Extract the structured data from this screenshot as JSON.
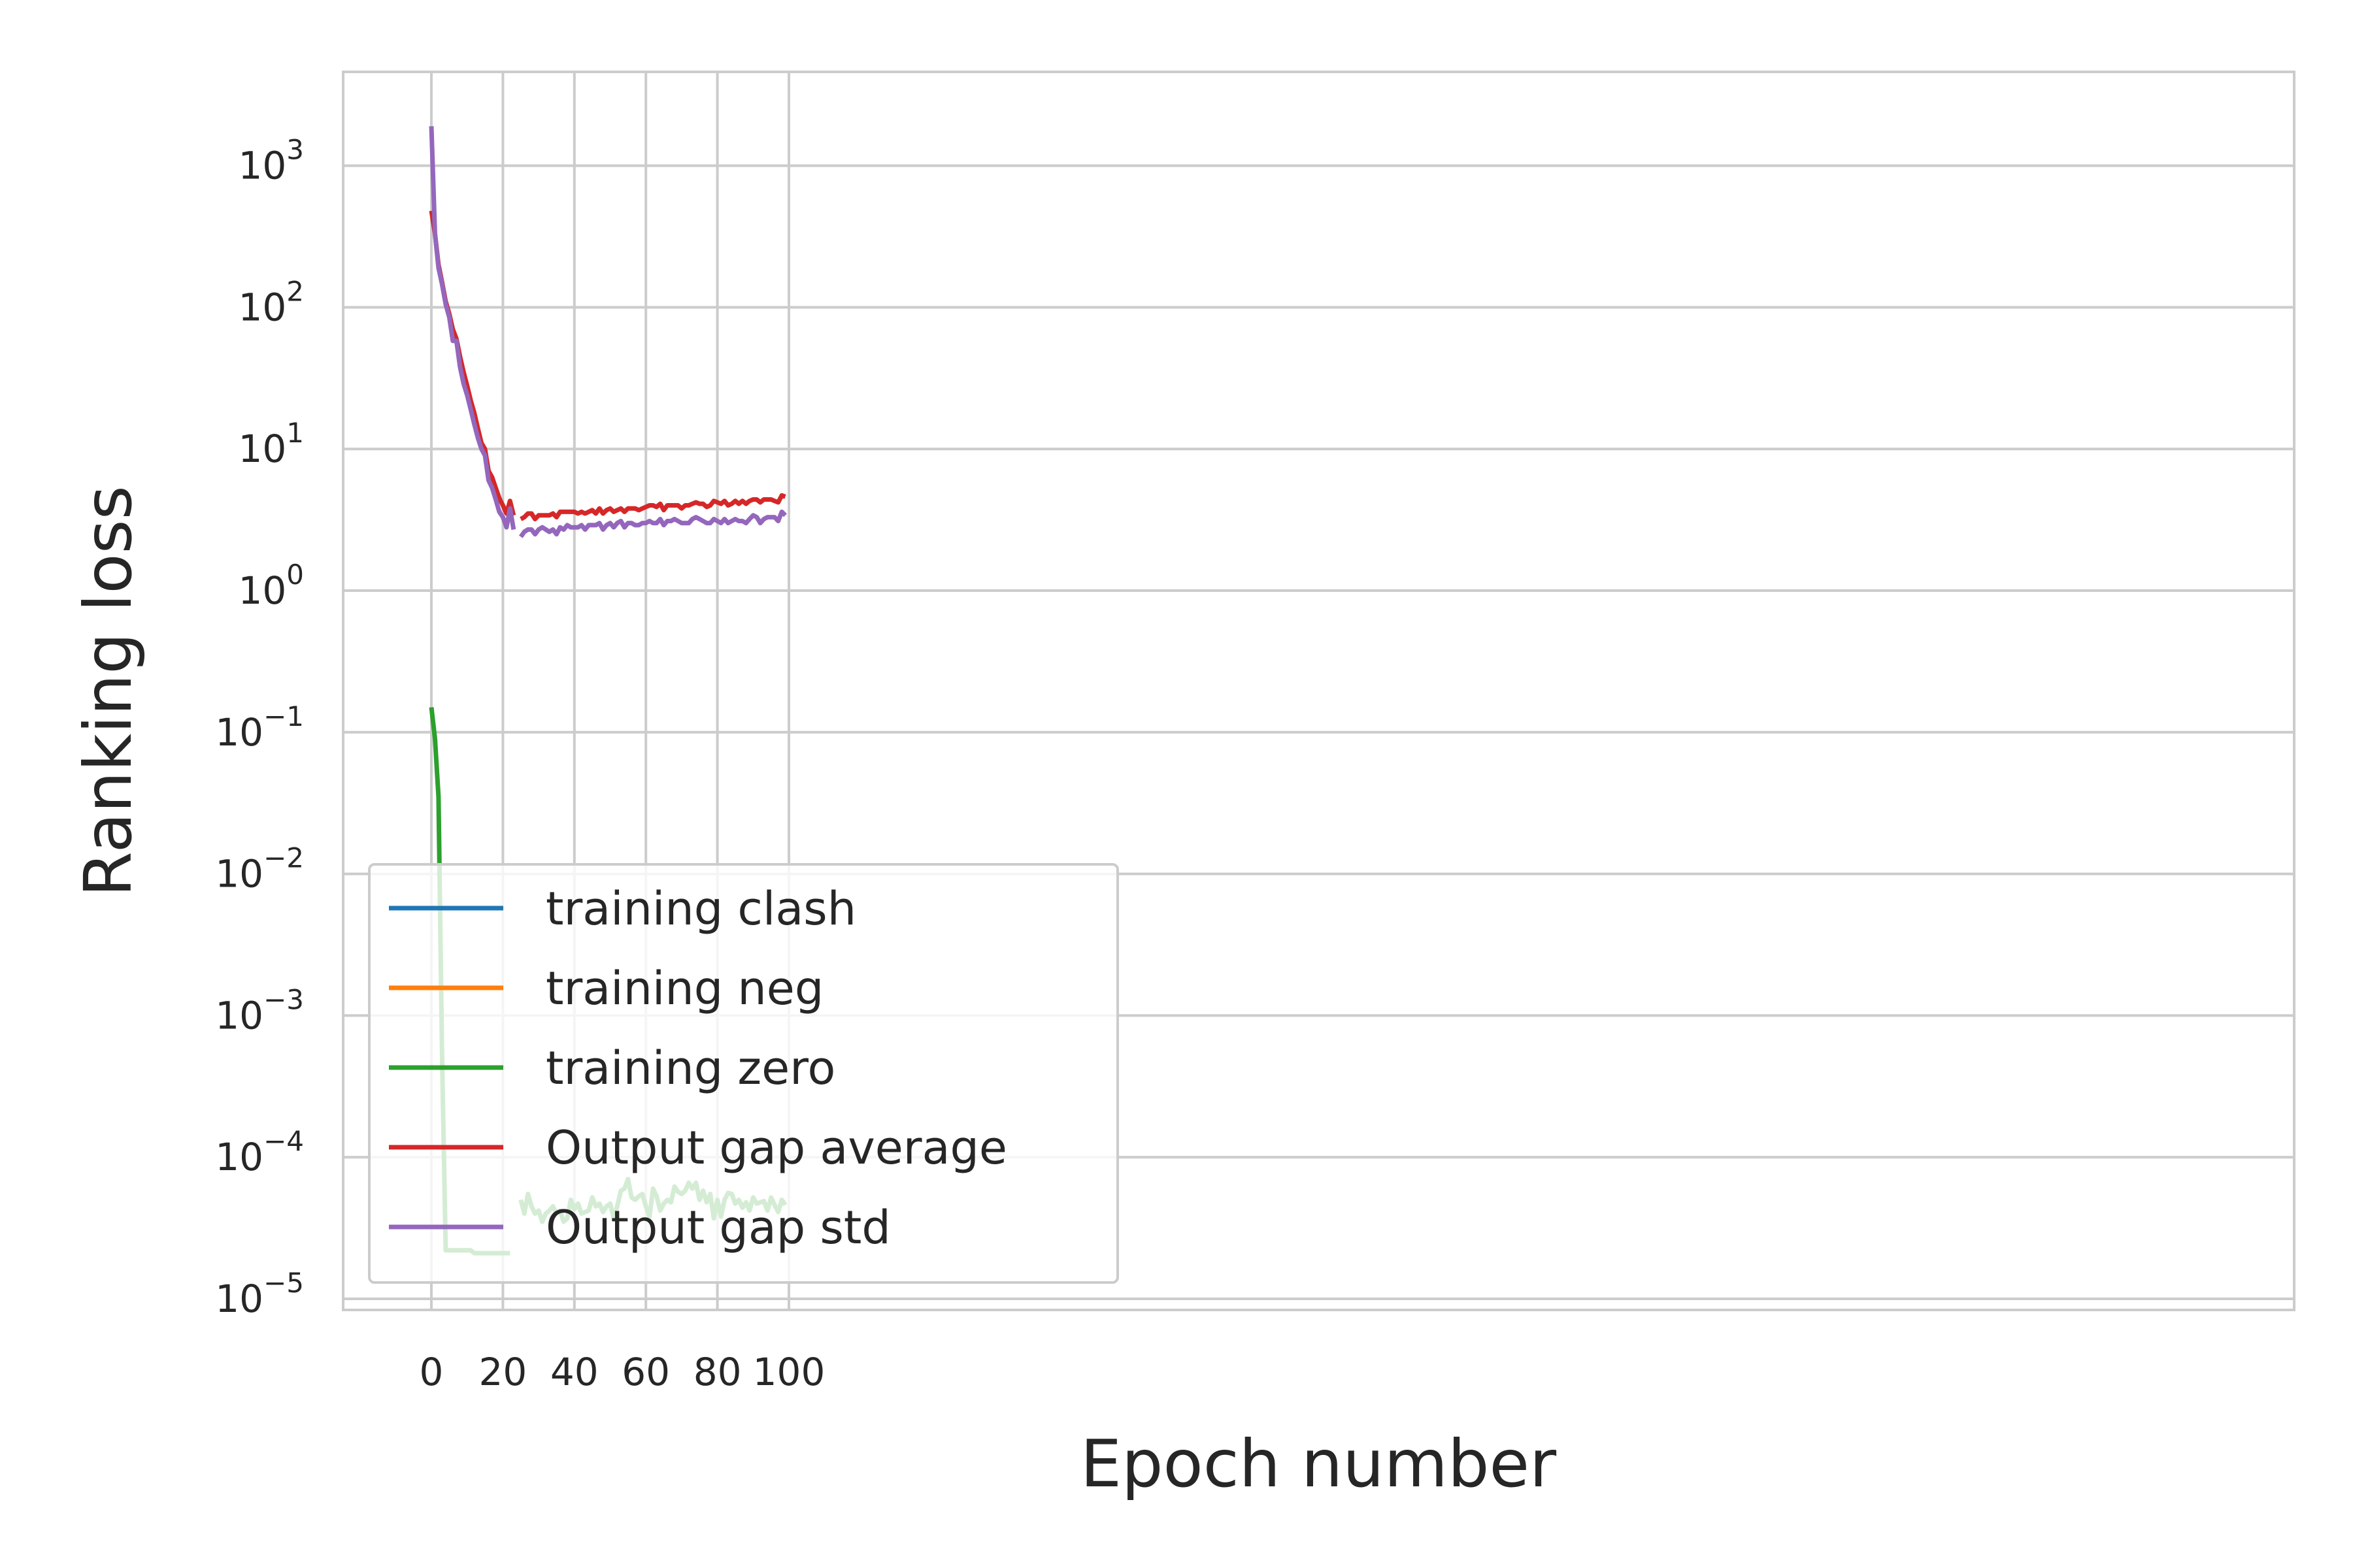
{
  "chart_data": {
    "type": "line",
    "xlabel": "Epoch number",
    "ylabel": "Ranking loss",
    "y_scale": "log",
    "xlim": [
      -5,
      104
    ],
    "ylim_log10": [
      -5.1,
      3.7
    ],
    "grid": true,
    "legend_placement": "lower-left",
    "x_ticks": [
      0,
      20,
      40,
      60,
      80,
      100
    ],
    "y_ticks": [
      {
        "base": "10",
        "exp": "−5",
        "log": -5
      },
      {
        "base": "10",
        "exp": "−4",
        "log": -4
      },
      {
        "base": "10",
        "exp": "−3",
        "log": -3
      },
      {
        "base": "10",
        "exp": "−2",
        "log": -2
      },
      {
        "base": "10",
        "exp": "−1",
        "log": -1
      },
      {
        "base": "10",
        "exp": "0",
        "log": 0
      },
      {
        "base": "10",
        "exp": "1",
        "log": 1
      },
      {
        "base": "10",
        "exp": "2",
        "log": 2
      },
      {
        "base": "10",
        "exp": "3",
        "log": 3
      }
    ],
    "series": [
      {
        "name": "training clash",
        "color": "#1f77b4",
        "segments": []
      },
      {
        "name": "training neg",
        "color": "#ff7f0e",
        "segments": []
      },
      {
        "name": "training zero",
        "color": "#2ca02c",
        "segments": [
          {
            "x": [
              0,
              1,
              2,
              3,
              4,
              5,
              6,
              7,
              8,
              9,
              10,
              11,
              12,
              13,
              14,
              15,
              16,
              17,
              18,
              19,
              20,
              21,
              22
            ],
            "y": [
              0.15,
              0.09,
              0.035,
              0.0005,
              2.2e-05,
              2.2e-05,
              2.2e-05,
              2.2e-05,
              2.2e-05,
              2.2e-05,
              2.2e-05,
              2.2e-05,
              2.1e-05,
              2.1e-05,
              2.1e-05,
              2.1e-05,
              2.1e-05,
              2.1e-05,
              2.1e-05,
              2.1e-05,
              2.1e-05,
              2.1e-05,
              2.1e-05
            ]
          },
          {
            "x": [
              25,
              26,
              27,
              28,
              29,
              30,
              31,
              32,
              33,
              34,
              35,
              36,
              37,
              38,
              39,
              40,
              41,
              42,
              43,
              44,
              45,
              46,
              47,
              48,
              49,
              50,
              51,
              52,
              53,
              54,
              55,
              56,
              57,
              58,
              59,
              60,
              61,
              62,
              63,
              64,
              65,
              66,
              67,
              68,
              69,
              70,
              71,
              72,
              73,
              74,
              75,
              76,
              77,
              78,
              79,
              80,
              81,
              82,
              83,
              84,
              85,
              86,
              87,
              88,
              89,
              90,
              91,
              92,
              93,
              94,
              95,
              96,
              97,
              98,
              99
            ],
            "y": [
              5e-05,
              4e-05,
              5.5e-05,
              4.5e-05,
              4e-05,
              4.2e-05,
              3.5e-05,
              4e-05,
              4.2e-05,
              4.5e-05,
              4e-05,
              4.2e-05,
              3.5e-05,
              3.7e-05,
              5e-05,
              4.3e-05,
              4.7e-05,
              4e-05,
              4.1e-05,
              4.2e-05,
              5.2e-05,
              4.5e-05,
              4.7e-05,
              4.1e-05,
              4.5e-05,
              4.7e-05,
              3.7e-05,
              4.5e-05,
              5.8e-05,
              6e-05,
              7e-05,
              5.2e-05,
              5e-05,
              5.3e-05,
              5.5e-05,
              4.5e-05,
              3.8e-05,
              6e-05,
              5.3e-05,
              4.2e-05,
              4.7e-05,
              5e-05,
              4.8e-05,
              6.2e-05,
              5.7e-05,
              5.5e-05,
              5.8e-05,
              6.6e-05,
              6e-05,
              6.6e-05,
              5e-05,
              5.8e-05,
              4.8e-05,
              5.5e-05,
              3.7e-05,
              5e-05,
              3.8e-05,
              5e-05,
              5.6e-05,
              5.5e-05,
              4.7e-05,
              5e-05,
              4.4e-05,
              4.8e-05,
              4.2e-05,
              5.2e-05,
              4.7e-05,
              4.8e-05,
              4.9e-05,
              4.2e-05,
              5.2e-05,
              4.6e-05,
              4.1e-05,
              5e-05,
              4.6e-05
            ]
          }
        ]
      },
      {
        "name": "Output gap average",
        "color": "#d62728",
        "segments": [
          {
            "x": [
              0,
              1,
              2,
              3,
              4,
              5,
              6,
              7,
              8,
              9,
              10,
              11,
              12,
              13,
              14,
              15,
              16,
              17,
              18,
              19,
              20,
              21,
              22,
              23
            ],
            "y": [
              480,
              330,
              200,
              150,
              110,
              90,
              70,
              60,
              45,
              35,
              28,
              22,
              18,
              14,
              11,
              10,
              7,
              6.3,
              5.3,
              4.5,
              4,
              3.5,
              4.3,
              3.4
            ]
          },
          {
            "x": [
              25,
              26,
              27,
              28,
              29,
              30,
              31,
              32,
              33,
              34,
              35,
              36,
              37,
              38,
              39,
              40,
              41,
              42,
              43,
              44,
              45,
              46,
              47,
              48,
              49,
              50,
              51,
              52,
              53,
              54,
              55,
              56,
              57,
              58,
              59,
              60,
              61,
              62,
              63,
              64,
              65,
              66,
              67,
              68,
              69,
              70,
              71,
              72,
              73,
              74,
              75,
              76,
              77,
              78,
              79,
              80,
              81,
              82,
              83,
              84,
              85,
              86,
              87,
              88,
              89,
              90,
              91,
              92,
              93,
              94,
              95,
              96,
              97,
              98,
              99
            ],
            "y": [
              3.2,
              3.3,
              3.5,
              3.5,
              3.2,
              3.4,
              3.4,
              3.4,
              3.4,
              3.5,
              3.3,
              3.6,
              3.6,
              3.6,
              3.6,
              3.6,
              3.5,
              3.6,
              3.5,
              3.6,
              3.7,
              3.5,
              3.8,
              3.5,
              3.7,
              3.8,
              3.6,
              3.7,
              3.8,
              3.6,
              3.8,
              3.8,
              3.8,
              3.7,
              3.8,
              3.9,
              4.0,
              4.0,
              3.9,
              4.1,
              3.7,
              4.0,
              4.0,
              4.0,
              4.0,
              3.8,
              4.0,
              4.0,
              4.1,
              4.2,
              4.1,
              4.1,
              3.9,
              4.0,
              4.3,
              4.2,
              4.1,
              4.3,
              4.0,
              4.1,
              4.3,
              4.1,
              4.3,
              4.1,
              4.3,
              4.4,
              4.4,
              4.2,
              4.4,
              4.4,
              4.4,
              4.3,
              4.2,
              4.7,
              4.6
            ]
          }
        ]
      },
      {
        "name": "Output gap std",
        "color": "#9467bd",
        "segments": [
          {
            "x": [
              0,
              1,
              2,
              3,
              4,
              5,
              6,
              7,
              8,
              9,
              10,
              11,
              12,
              13,
              14,
              15,
              16,
              17,
              18,
              19,
              20,
              21,
              22,
              23
            ],
            "y": [
              1900,
              330,
              190,
              145,
              105,
              85,
              58,
              58,
              38,
              29,
              24,
              19,
              15,
              12,
              10,
              9,
              6,
              5.3,
              4.4,
              3.6,
              3.3,
              2.8,
              3.8,
              2.7
            ]
          },
          {
            "x": [
              25,
              26,
              27,
              28,
              29,
              30,
              31,
              32,
              33,
              34,
              35,
              36,
              37,
              38,
              39,
              40,
              41,
              42,
              43,
              44,
              45,
              46,
              47,
              48,
              49,
              50,
              51,
              52,
              53,
              54,
              55,
              56,
              57,
              58,
              59,
              60,
              61,
              62,
              63,
              64,
              65,
              66,
              67,
              68,
              69,
              70,
              71,
              72,
              73,
              74,
              75,
              76,
              77,
              78,
              79,
              80,
              81,
              82,
              83,
              84,
              85,
              86,
              87,
              88,
              89,
              90,
              91,
              92,
              93,
              94,
              95,
              96,
              97,
              98,
              99
            ],
            "y": [
              2.4,
              2.6,
              2.7,
              2.7,
              2.5,
              2.7,
              2.8,
              2.7,
              2.6,
              2.7,
              2.5,
              2.8,
              2.7,
              2.9,
              2.8,
              2.8,
              2.8,
              2.9,
              2.7,
              2.9,
              2.9,
              2.9,
              3.0,
              2.7,
              2.9,
              3.0,
              2.8,
              3.0,
              3.1,
              2.8,
              3.0,
              3.0,
              2.9,
              2.9,
              3.0,
              3.0,
              3.1,
              3.0,
              3.0,
              3.2,
              2.9,
              3.1,
              3.1,
              3.2,
              3.1,
              3.0,
              3.0,
              3.0,
              3.2,
              3.3,
              3.2,
              3.1,
              3.0,
              3.0,
              3.2,
              3.1,
              3.0,
              3.2,
              3.0,
              3.1,
              3.2,
              3.1,
              3.1,
              3.0,
              3.2,
              3.4,
              3.3,
              3.0,
              3.2,
              3.3,
              3.3,
              3.3,
              3.1,
              3.6,
              3.4
            ]
          }
        ]
      }
    ]
  }
}
